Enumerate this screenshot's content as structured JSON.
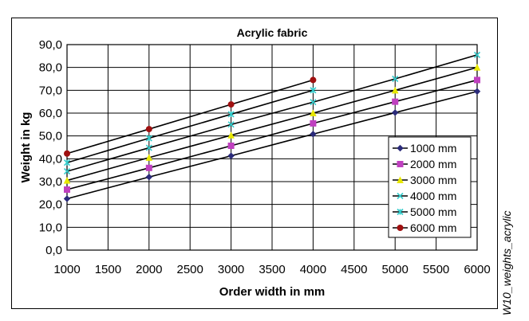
{
  "side_caption": "W10_weights_acrylic",
  "chart_data": {
    "type": "line",
    "title": "Acrylic fabric",
    "xlabel": "Order width in mm",
    "ylabel": "Weight in kg",
    "xlim": [
      1000,
      6000
    ],
    "ylim": [
      0,
      90
    ],
    "x_ticks": [
      "1000",
      "1500",
      "2000",
      "2500",
      "3000",
      "3500",
      "4000",
      "4500",
      "5000",
      "5500",
      "6000"
    ],
    "y_ticks": [
      "0,0",
      "10,0",
      "20,0",
      "30,0",
      "40,0",
      "50,0",
      "60,0",
      "70,0",
      "80,0",
      "90,0"
    ],
    "grid": true,
    "legend_position": "right",
    "series": [
      {
        "name": "1000 mm",
        "marker": "diamond",
        "color": "#2b2b7a",
        "x": [
          1000,
          2000,
          3000,
          4000,
          5000,
          6000
        ],
        "y": [
          22.5,
          32.0,
          41.3,
          50.8,
          60.2,
          69.5
        ]
      },
      {
        "name": "2000 mm",
        "marker": "square",
        "color": "#c040c0",
        "x": [
          1000,
          2000,
          3000,
          4000,
          5000,
          6000
        ],
        "y": [
          26.5,
          36.0,
          45.7,
          55.5,
          65.0,
          74.5
        ]
      },
      {
        "name": "3000 mm",
        "marker": "triangle",
        "color": "#e8e800",
        "x": [
          1000,
          2000,
          3000,
          4000,
          5000,
          6000
        ],
        "y": [
          30.5,
          40.5,
          50.3,
          60.0,
          70.0,
          80.0
        ]
      },
      {
        "name": "4000 mm",
        "marker": "x",
        "color": "#33cccc",
        "x": [
          1000,
          2000,
          3000,
          4000,
          5000,
          6000
        ],
        "y": [
          34.5,
          44.8,
          55.0,
          64.8,
          75.0,
          85.5
        ]
      },
      {
        "name": "5000 mm",
        "marker": "star",
        "color": "#33cccc",
        "x": [
          1000,
          2000,
          3000,
          4000
        ],
        "y": [
          38.3,
          49.0,
          59.5,
          70.0
        ]
      },
      {
        "name": "6000 mm",
        "marker": "circle",
        "color": "#a01010",
        "x": [
          1000,
          2000,
          3000,
          4000
        ],
        "y": [
          42.3,
          53.0,
          63.8,
          74.5
        ]
      }
    ]
  }
}
